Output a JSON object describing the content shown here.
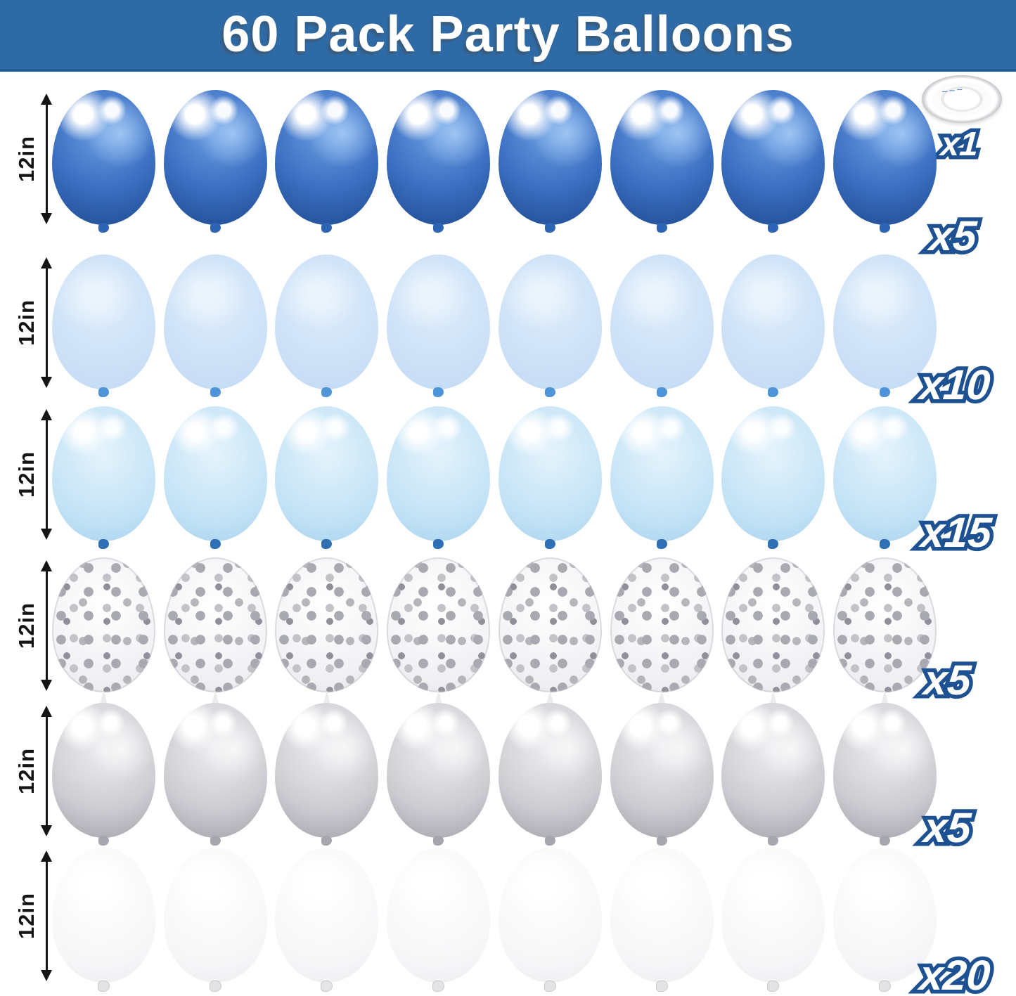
{
  "title": "60 Pack Party Balloons",
  "colors": {
    "banner_blue": "#2e6ba6",
    "count_outline_blue": "#1d5191",
    "count_fill": "#ffffff",
    "chrome_blue": "#3b6fc2",
    "pastel_blue": "#c8def6",
    "pearl_blue": "#c0e1f5",
    "confetti_silver": "#b5b5bc",
    "chrome_silver": "#cbcbd1",
    "white_balloon": "#f6f6f8"
  },
  "ribbon": {
    "type": "white balloon ribbon roll",
    "count": "x1",
    "scribble": "~~~"
  },
  "rows": [
    {
      "type": "chrome blue balloons",
      "size": "12in",
      "count": "x5"
    },
    {
      "type": "pastel blue balloons",
      "size": "12in",
      "count": "x10"
    },
    {
      "type": "pearl light blue balloons",
      "size": "12in",
      "count": "x15"
    },
    {
      "type": "silver confetti balloons",
      "size": "12in",
      "count": "x5"
    },
    {
      "type": "chrome silver balloons",
      "size": "12in",
      "count": "x5"
    },
    {
      "type": "white balloons",
      "size": "12in",
      "count": "x20"
    }
  ]
}
